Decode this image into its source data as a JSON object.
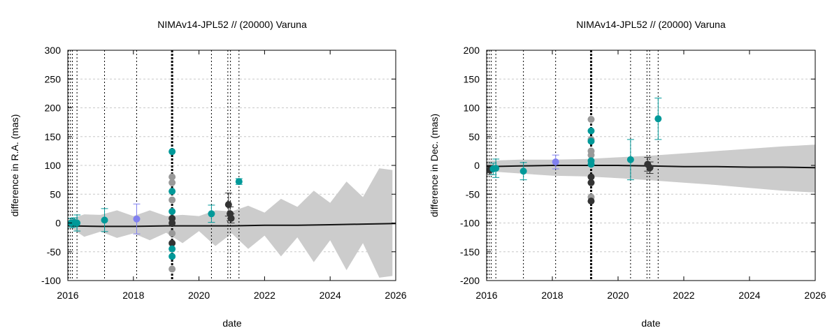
{
  "chart_data": [
    {
      "type": "scatter",
      "title": "NIMAv14-JPL52 // (20000) Varuna",
      "xlabel": "date",
      "ylabel": "difference in R.A. (mas)",
      "xlim": [
        2016,
        2026
      ],
      "ylim": [
        -100,
        300
      ],
      "xticks": [
        "2016",
        "2018",
        "2020",
        "2022",
        "2024",
        "2026"
      ],
      "yticks": [
        "-100",
        "-50",
        "0",
        "50",
        "100",
        "150",
        "200",
        "250",
        "300"
      ],
      "grid": true,
      "colors": {
        "teal": "#009999",
        "dark": "#333333",
        "gray": "#999999",
        "purple": "#8080f0",
        "band": "#cccccc",
        "line": "#111111"
      },
      "uncertainty_band": {
        "x": [
          2016.0,
          2016.5,
          2017.0,
          2017.5,
          2018.0,
          2018.5,
          2019.0,
          2019.5,
          2020.0,
          2020.5,
          2021.0,
          2021.5,
          2022.0,
          2022.5,
          2023.0,
          2023.5,
          2024.0,
          2024.5,
          2025.0,
          2025.5,
          2025.9
        ],
        "upper": [
          5,
          15,
          14,
          22,
          12,
          22,
          12,
          14,
          12,
          22,
          20,
          30,
          18,
          42,
          28,
          56,
          35,
          72,
          45,
          95,
          92
        ],
        "lower": [
          -5,
          -24,
          -15,
          -26,
          -18,
          -30,
          -17,
          -35,
          -14,
          -40,
          -18,
          -45,
          -22,
          -58,
          -25,
          -68,
          -30,
          -82,
          -35,
          -95,
          -92
        ]
      },
      "model_line": {
        "x": [
          2016.0,
          2017.0,
          2018.0,
          2019.0,
          2020.0,
          2021.0,
          2022.0,
          2023.0,
          2024.0,
          2025.0,
          2026.0
        ],
        "y": [
          -5,
          -6,
          -6,
          -5,
          -5,
          -5,
          -4,
          -4,
          -3,
          -2,
          -1
        ]
      },
      "vlines": [
        {
          "x": 2016.02,
          "thick": false
        },
        {
          "x": 2016.08,
          "thick": false
        },
        {
          "x": 2016.14,
          "thick": false
        },
        {
          "x": 2016.28,
          "thick": false
        },
        {
          "x": 2017.12,
          "thick": false
        },
        {
          "x": 2018.1,
          "thick": false
        },
        {
          "x": 2019.18,
          "thick": true
        },
        {
          "x": 2020.38,
          "thick": false
        },
        {
          "x": 2020.88,
          "thick": false
        },
        {
          "x": 2020.96,
          "thick": false
        },
        {
          "x": 2021.22,
          "thick": false
        }
      ],
      "points": [
        {
          "x": 2016.1,
          "y": 0,
          "err": 8,
          "color": "teal"
        },
        {
          "x": 2016.2,
          "y": 1,
          "err": 8,
          "color": "teal"
        },
        {
          "x": 2016.28,
          "y": 0,
          "err": 14,
          "color": "teal"
        },
        {
          "x": 2017.12,
          "y": 5,
          "err": 20,
          "color": "teal"
        },
        {
          "x": 2018.1,
          "y": 7,
          "err": 26,
          "color": "purple"
        },
        {
          "x": 2019.18,
          "y": 124,
          "err": 0,
          "color": "teal"
        },
        {
          "x": 2019.18,
          "y": 80,
          "err": 0,
          "color": "gray"
        },
        {
          "x": 2019.18,
          "y": 70,
          "err": 0,
          "color": "gray"
        },
        {
          "x": 2019.18,
          "y": 55,
          "err": 0,
          "color": "teal"
        },
        {
          "x": 2019.18,
          "y": 40,
          "err": 0,
          "color": "gray"
        },
        {
          "x": 2019.18,
          "y": 20,
          "err": 0,
          "color": "teal"
        },
        {
          "x": 2019.18,
          "y": 8,
          "err": 0,
          "color": "dark"
        },
        {
          "x": 2019.18,
          "y": 0,
          "err": 0,
          "color": "dark"
        },
        {
          "x": 2019.18,
          "y": -18,
          "err": 0,
          "color": "gray"
        },
        {
          "x": 2019.18,
          "y": -35,
          "err": 0,
          "color": "dark"
        },
        {
          "x": 2019.18,
          "y": -45,
          "err": 0,
          "color": "teal"
        },
        {
          "x": 2019.18,
          "y": -58,
          "err": 0,
          "color": "teal"
        },
        {
          "x": 2019.18,
          "y": -80,
          "err": 0,
          "color": "gray"
        },
        {
          "x": 2020.38,
          "y": 16,
          "err": 15,
          "color": "teal"
        },
        {
          "x": 2020.9,
          "y": 32,
          "err": 20,
          "color": "dark"
        },
        {
          "x": 2020.95,
          "y": 16,
          "err": 12,
          "color": "dark"
        },
        {
          "x": 2020.98,
          "y": 8,
          "err": 8,
          "color": "dark"
        },
        {
          "x": 2021.22,
          "y": 72,
          "err": 5,
          "color": "teal"
        }
      ]
    },
    {
      "type": "scatter",
      "title": "NIMAv14-JPL52 // (20000) Varuna",
      "xlabel": "date",
      "ylabel": "difference in Dec. (mas)",
      "xlim": [
        2016,
        2026
      ],
      "ylim": [
        -200,
        200
      ],
      "xticks": [
        "2016",
        "2018",
        "2020",
        "2022",
        "2024",
        "2026"
      ],
      "yticks": [
        "-200",
        "-150",
        "-100",
        "-50",
        "0",
        "50",
        "100",
        "150",
        "200"
      ],
      "grid": true,
      "colors": {
        "teal": "#009999",
        "dark": "#333333",
        "gray": "#999999",
        "purple": "#8080f0",
        "band": "#cccccc",
        "line": "#111111"
      },
      "uncertainty_band": {
        "x": [
          2016.0,
          2017.0,
          2018.0,
          2019.0,
          2020.0,
          2021.0,
          2022.0,
          2023.0,
          2024.0,
          2025.0,
          2026.0
        ],
        "upper": [
          8,
          10,
          10,
          11,
          14,
          17,
          21,
          25,
          29,
          33,
          36
        ],
        "lower": [
          -10,
          -14,
          -18,
          -19,
          -22,
          -26,
          -30,
          -34,
          -39,
          -44,
          -47
        ]
      },
      "model_line": {
        "x": [
          2016.0,
          2017.0,
          2018.0,
          2019.0,
          2020.0,
          2021.0,
          2022.0,
          2023.0,
          2024.0,
          2025.0,
          2026.0
        ],
        "y": [
          -2,
          -1,
          0,
          0,
          0,
          -1,
          -2,
          -2,
          -3,
          -3,
          -4
        ]
      },
      "vlines": [
        {
          "x": 2016.02,
          "thick": false
        },
        {
          "x": 2016.08,
          "thick": false
        },
        {
          "x": 2016.14,
          "thick": false
        },
        {
          "x": 2016.28,
          "thick": false
        },
        {
          "x": 2017.12,
          "thick": false
        },
        {
          "x": 2018.1,
          "thick": false
        },
        {
          "x": 2019.18,
          "thick": true
        },
        {
          "x": 2020.38,
          "thick": false
        },
        {
          "x": 2020.88,
          "thick": false
        },
        {
          "x": 2020.96,
          "thick": false
        },
        {
          "x": 2021.22,
          "thick": false
        }
      ],
      "points": [
        {
          "x": 2016.1,
          "y": -8,
          "err": 8,
          "color": "dark"
        },
        {
          "x": 2016.2,
          "y": -6,
          "err": 10,
          "color": "teal"
        },
        {
          "x": 2016.28,
          "y": -5,
          "err": 16,
          "color": "teal"
        },
        {
          "x": 2017.12,
          "y": -10,
          "err": 15,
          "color": "teal"
        },
        {
          "x": 2018.1,
          "y": 6,
          "err": 12,
          "color": "purple"
        },
        {
          "x": 2019.18,
          "y": 80,
          "err": 0,
          "color": "gray"
        },
        {
          "x": 2019.18,
          "y": 60,
          "err": 0,
          "color": "teal"
        },
        {
          "x": 2019.18,
          "y": 45,
          "err": 0,
          "color": "gray"
        },
        {
          "x": 2019.18,
          "y": 42,
          "err": 0,
          "color": "teal"
        },
        {
          "x": 2019.18,
          "y": 25,
          "err": 0,
          "color": "gray"
        },
        {
          "x": 2019.18,
          "y": 18,
          "err": 0,
          "color": "gray"
        },
        {
          "x": 2019.18,
          "y": 8,
          "err": 0,
          "color": "teal"
        },
        {
          "x": 2019.18,
          "y": 2,
          "err": 0,
          "color": "teal"
        },
        {
          "x": 2019.18,
          "y": -20,
          "err": 0,
          "color": "dark"
        },
        {
          "x": 2019.18,
          "y": -30,
          "err": 0,
          "color": "dark"
        },
        {
          "x": 2019.18,
          "y": -55,
          "err": 0,
          "color": "gray"
        },
        {
          "x": 2019.18,
          "y": -62,
          "err": 0,
          "color": "dark"
        },
        {
          "x": 2020.38,
          "y": 10,
          "err": 35,
          "color": "teal"
        },
        {
          "x": 2020.9,
          "y": 2,
          "err": 12,
          "color": "dark"
        },
        {
          "x": 2020.97,
          "y": -4,
          "err": 10,
          "color": "dark"
        },
        {
          "x": 2021.22,
          "y": 81,
          "err": 36,
          "color": "teal"
        }
      ]
    }
  ]
}
